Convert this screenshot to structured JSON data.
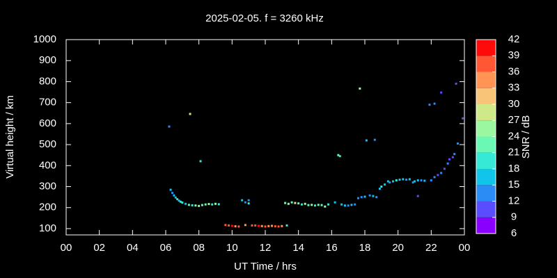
{
  "chart_data": {
    "type": "scatter",
    "title": "2025-02-05. f = 3260 kHz",
    "x_label": "UT Time / hrs",
    "y_label": "Virtual height / km",
    "colorbar_label": "SNR / dB",
    "xlim": [
      0,
      24
    ],
    "xticks": [
      {
        "value": 0,
        "label": "00"
      },
      {
        "value": 2,
        "label": "02"
      },
      {
        "value": 4,
        "label": "04"
      },
      {
        "value": 6,
        "label": "06"
      },
      {
        "value": 8,
        "label": "08"
      },
      10,
      12,
      14,
      16,
      18,
      20,
      22,
      {
        "value": 24,
        "label": "00"
      }
    ],
    "ylim": [
      70,
      1000
    ],
    "yticks": [
      100,
      200,
      300,
      400,
      500,
      600,
      700,
      800,
      900,
      1000
    ],
    "clim": [
      6,
      42
    ],
    "cticks": [
      6,
      9,
      12,
      15,
      18,
      21,
      24,
      27,
      30,
      33,
      36,
      39,
      42
    ],
    "colormap": [
      "#8a00ff",
      "#5a4cff",
      "#2a8cf4",
      "#10c4ea",
      "#36e8d6",
      "#6af8b4",
      "#9cf8a0",
      "#cfe888",
      "#f8c478",
      "#ff9454",
      "#ff5634",
      "#ff0a0a"
    ],
    "x": [
      6.21,
      7.47,
      8.1,
      6.3,
      6.4,
      6.5,
      6.6,
      6.7,
      6.8,
      6.9,
      7.0,
      7.2,
      7.4,
      7.6,
      7.8,
      8.0,
      8.2,
      8.4,
      8.6,
      8.8,
      9.0,
      9.2,
      9.6,
      9.8,
      10.0,
      10.2,
      10.4,
      10.8,
      11.2,
      11.4,
      11.6,
      11.8,
      12.0,
      12.2,
      12.4,
      12.6,
      12.8,
      13.0,
      13.3,
      10.6,
      10.8,
      11.0,
      11.0,
      13.2,
      13.4,
      13.6,
      13.8,
      14.0,
      14.2,
      14.4,
      14.6,
      14.8,
      15.0,
      15.2,
      15.4,
      15.6,
      15.8,
      16.2,
      16.4,
      16.5,
      16.6,
      16.8,
      17.0,
      17.2,
      17.4,
      17.6,
      17.8,
      18.0,
      18.3,
      18.5,
      18.7,
      17.7,
      18.1,
      18.6,
      18.9,
      19.0,
      19.2,
      19.4,
      19.5,
      19.7,
      19.9,
      20.1,
      20.3,
      20.5,
      20.7,
      20.9,
      21.0,
      21.2,
      21.4,
      21.6,
      21.2,
      21.9,
      22.2,
      22.6,
      23.5,
      23.6,
      23.9,
      22.0,
      22.2,
      22.4,
      22.6,
      22.8,
      23.0,
      23.1,
      23.3,
      23.4
    ],
    "values": [
      586,
      646,
      421,
      285,
      270,
      258,
      248,
      240,
      233,
      228,
      224,
      218,
      213,
      211,
      210,
      208,
      212,
      215,
      217,
      215,
      218,
      216,
      117,
      115,
      113,
      111,
      110,
      117,
      115,
      115,
      113,
      112,
      110,
      112,
      113,
      111,
      110,
      112,
      115,
      235,
      225,
      220,
      235,
      222,
      218,
      225,
      222,
      220,
      215,
      218,
      212,
      213,
      210,
      213,
      212,
      205,
      215,
      225,
      450,
      445,
      215,
      210,
      210,
      213,
      215,
      245,
      250,
      252,
      258,
      255,
      250,
      767,
      520,
      523,
      290,
      300,
      310,
      325,
      320,
      325,
      330,
      333,
      335,
      333,
      335,
      320,
      325,
      330,
      330,
      328,
      255,
      690,
      695,
      748,
      790,
      505,
      625,
      330,
      345,
      355,
      365,
      385,
      410,
      430,
      440,
      455
    ],
    "snr": [
      14,
      28,
      18,
      16,
      14,
      17,
      15,
      18,
      16,
      19,
      20,
      17,
      22,
      19,
      24,
      26,
      21,
      23,
      25,
      19,
      24,
      20,
      38,
      36,
      39,
      34,
      37,
      33,
      38,
      36,
      39,
      34,
      37,
      33,
      35,
      38,
      36,
      34,
      19,
      16,
      13,
      18,
      12,
      22,
      25,
      21,
      27,
      23,
      20,
      26,
      22,
      24,
      19,
      23,
      21,
      25,
      18,
      16,
      21,
      18,
      15,
      17,
      14,
      16,
      13,
      12,
      14,
      16,
      13,
      15,
      12,
      25,
      17,
      12,
      16,
      18,
      15,
      17,
      14,
      16,
      18,
      15,
      17,
      14,
      16,
      13,
      15,
      17,
      14,
      16,
      11,
      12,
      13,
      11,
      10,
      12,
      11,
      14,
      12,
      10,
      13,
      11,
      12,
      10,
      11,
      12
    ]
  }
}
